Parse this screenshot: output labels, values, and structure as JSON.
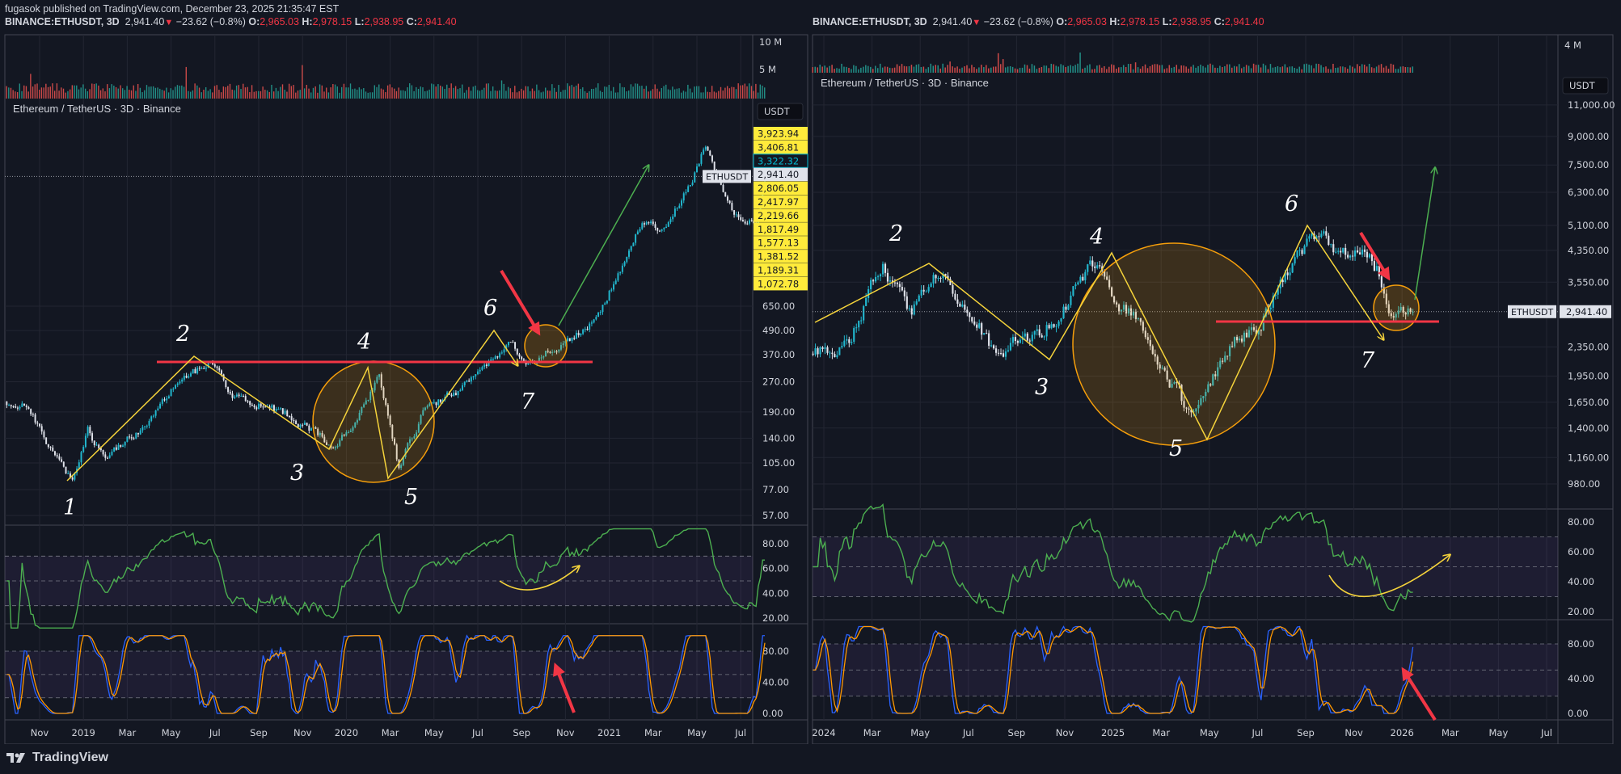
{
  "header": {
    "published": "fugasok published on TradingView.com, December 23, 2025 21:35:47 EST",
    "symbol": "BINANCE:ETHUSDT, 3D",
    "last": "2,941.40",
    "change": "−23.62 (−0.8%)",
    "o_label": "O:",
    "o": "2,965.03",
    "h_label": "H:",
    "h": "2,978.15",
    "l_label": "L:",
    "l": "2,938.95",
    "c_label": "C:",
    "c": "2,941.40"
  },
  "footer": {
    "brand": "TradingView"
  },
  "colors": {
    "up": "#22b8cf",
    "down": "#e0e3eb",
    "vol_up": "#26a69a",
    "vol_down": "#ef5350",
    "rsi": "#4caf50",
    "stoch_k": "#2962ff",
    "stoch_d": "#ff9800",
    "annot_yellow": "#f5d33b",
    "annot_red": "#f23645",
    "annot_green": "#4caf50",
    "circle": "#f59e0b"
  },
  "chart_data": [
    {
      "type": "candlestick",
      "title": "Ethereum / TetherUS · 3D · Binance",
      "currency_button": "USDT",
      "symbol_tag": "ETHUSDT",
      "last_price": "2,941.40",
      "volume_ticks": [
        "10 M",
        "5 M"
      ],
      "y_scale": "log",
      "price_ticks": [
        650,
        490,
        370,
        270,
        190,
        140,
        105,
        77,
        57
      ],
      "price_tick_labels": [
        "650.00",
        "490.00",
        "370.00",
        "270.00",
        "190.00",
        "140.00",
        "105.00",
        "77.00",
        "57.00"
      ],
      "alert_labels": [
        "3,923.94",
        "3,406.81",
        "3,322.32",
        "2,941.40",
        "2,806.05",
        "2,417.97",
        "2,219.66",
        "1,817.49",
        "1,577.13",
        "1,381.52",
        "1,189.31",
        "1,072.78"
      ],
      "rsi_ticks": [
        "80.00",
        "60.00",
        "40.00",
        "20.00"
      ],
      "stoch_ticks": [
        "80.00",
        "40.00",
        "0.00"
      ],
      "x_labels": [
        "Nov",
        "2019",
        "Mar",
        "May",
        "Jul",
        "Sep",
        "Nov",
        "2020",
        "Mar",
        "May",
        "Jul",
        "Sep",
        "Nov",
        "2021",
        "Mar",
        "May",
        "Jul"
      ],
      "x_label_months": [
        1,
        3,
        5,
        7,
        9,
        11,
        13,
        15,
        17,
        19,
        21,
        23,
        25,
        27,
        29,
        31,
        33
      ],
      "month_origin": "2018-10",
      "price_path_months": [
        -0.5,
        0.5,
        1.5,
        2.5,
        3.2,
        4,
        5,
        6,
        7,
        8.8,
        9.8,
        11,
        12.5,
        14.5,
        15.3,
        16.5,
        17.4,
        18.5,
        20,
        21,
        22.5,
        23.2,
        24.3,
        25.5,
        26.5,
        27.3,
        28.5,
        29.5,
        30.5,
        31.4,
        32.1,
        32.8,
        33.7,
        34.1
      ],
      "price_path_values": [
        215,
        200,
        120,
        84,
        150,
        110,
        140,
        170,
        250,
        340,
        220,
        210,
        180,
        125,
        165,
        280,
        100,
        190,
        240,
        300,
        440,
        330,
        390,
        470,
        590,
        900,
        1750,
        1600,
        2400,
        4200,
        2600,
        1900,
        1800,
        2750
      ],
      "wave_labels": [
        "1",
        "2",
        "3",
        "4",
        "5",
        "6",
        "7"
      ]
    },
    {
      "type": "candlestick",
      "title": "Ethereum / TetherUS · 3D · Binance",
      "currency_button": "USDT",
      "symbol_tag": "ETHUSDT",
      "last_price": "2,941.40",
      "volume_ticks": [
        "4 M"
      ],
      "y_scale": "log",
      "price_ticks": [
        11000,
        9000,
        7500,
        6300,
        5100,
        4350,
        3550,
        2350,
        1950,
        1650,
        1400,
        1160,
        980
      ],
      "price_tick_labels": [
        "11,000.00",
        "9,000.00",
        "7,500.00",
        "6,300.00",
        "5,100.00",
        "4,350.00",
        "3,550.00",
        "2,350.00",
        "1,950.00",
        "1,650.00",
        "1,400.00",
        "1,160.00",
        "980.00"
      ],
      "rsi_ticks": [
        "80.00",
        "60.00",
        "40.00",
        "20.00"
      ],
      "stoch_ticks": [
        "80.00",
        "40.00",
        "0.00"
      ],
      "x_labels": [
        "2024",
        "Mar",
        "May",
        "Jul",
        "Sep",
        "Nov",
        "2025",
        "Mar",
        "May",
        "Jul",
        "Sep",
        "Nov",
        "2026",
        "Mar",
        "May",
        "Jul"
      ],
      "x_label_months": [
        0,
        2,
        4,
        6,
        8,
        10,
        12,
        14,
        16,
        18,
        20,
        22,
        24,
        26,
        28,
        30
      ],
      "month_origin": "2024-01",
      "price_path_months": [
        -0.45,
        0.3,
        1,
        2,
        2.4,
        3,
        3.6,
        4.5,
        5,
        6.2,
        7.1,
        8,
        9,
        10,
        11.2,
        12,
        13,
        14,
        15.3,
        16,
        17,
        18,
        19,
        20,
        20.7,
        21.5,
        22,
        23,
        23.6,
        24,
        24.45
      ],
      "price_path_values": [
        2250,
        2300,
        2350,
        3500,
        4050,
        3450,
        2900,
        3850,
        3600,
        2950,
        2200,
        2450,
        2550,
        3000,
        4050,
        3300,
        2750,
        2100,
        1450,
        1800,
        2500,
        2600,
        3700,
        4350,
        4850,
        4300,
        4450,
        3850,
        2900,
        3100,
        2941
      ],
      "wave_labels": [
        "2",
        "3",
        "4",
        "5",
        "6",
        "7"
      ]
    }
  ]
}
